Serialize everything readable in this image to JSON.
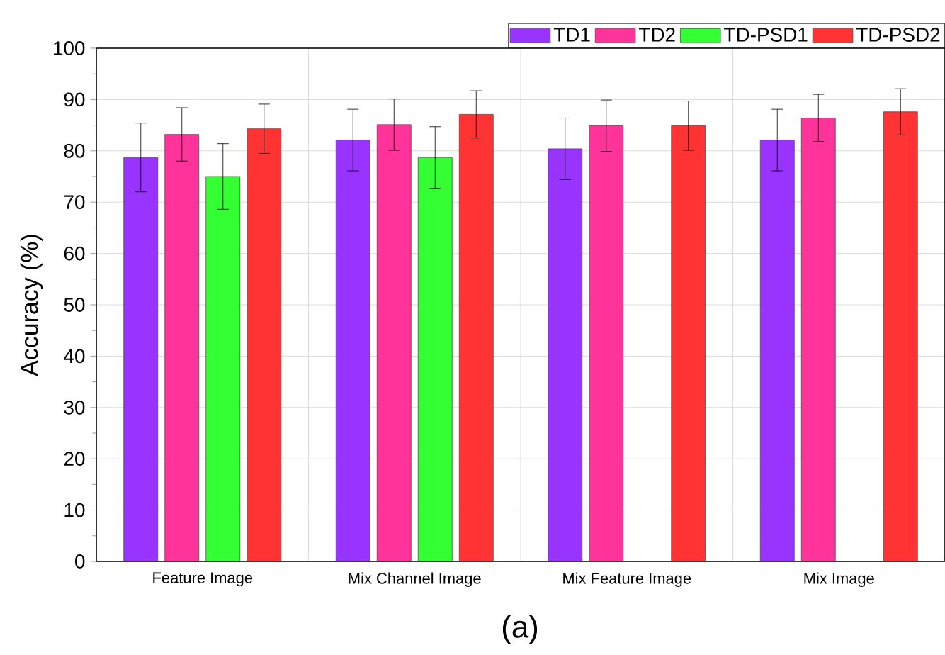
{
  "chart_data": {
    "type": "bar",
    "ylabel": "Accuracy (%)",
    "categories": [
      "Feature Image",
      "Mix Channel Image",
      "Mix Feature Image",
      "Mix Image"
    ],
    "series": [
      {
        "name": "TD1",
        "color": "#9933ff",
        "values": [
          78.7,
          82.1,
          80.4,
          82.1
        ],
        "errors": [
          6.7,
          6.0,
          6.0,
          6.0
        ]
      },
      {
        "name": "TD2",
        "color": "#ff3399",
        "values": [
          83.2,
          85.1,
          84.9,
          86.4
        ],
        "errors": [
          5.2,
          5.0,
          5.0,
          4.6
        ]
      },
      {
        "name": "TD-PSD1",
        "color": "#33ff33",
        "values": [
          75.0,
          78.7,
          null,
          null
        ],
        "errors": [
          6.4,
          6.0,
          null,
          null
        ]
      },
      {
        "name": "TD-PSD2",
        "color": "#ff3333",
        "values": [
          84.3,
          87.1,
          84.9,
          87.6
        ],
        "errors": [
          4.8,
          4.6,
          4.8,
          4.5
        ]
      }
    ],
    "ylim": [
      0,
      100
    ],
    "yticks": [
      0,
      10,
      20,
      30,
      40,
      50,
      60,
      70,
      80,
      90,
      100
    ],
    "grid": true,
    "legend": "top right",
    "annotations": [
      "(a)"
    ]
  }
}
